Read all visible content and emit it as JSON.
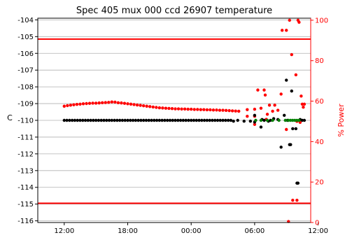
{
  "colors": {
    "temperature": "#000000",
    "power": "#ff0000",
    "limit": "#ff0000",
    "green_series": "#008000",
    "grid": "#b0b0b0",
    "right_axis": "#ff0000"
  },
  "chart_data": {
    "type": "scatter",
    "title": "Spec 405 mux 000 ccd 26907 temperature",
    "ylabel": "C",
    "y2label": "% Power",
    "ylim": [
      -116.1,
      -103.9
    ],
    "y2lim": [
      0,
      101
    ],
    "xlim_hours": [
      9.5,
      35.3
    ],
    "grid": "horizontal",
    "x_ticks": [
      {
        "value": 12,
        "label": "12:00"
      },
      {
        "value": 18,
        "label": "18:00"
      },
      {
        "value": 24,
        "label": "00:00"
      },
      {
        "value": 30,
        "label": "06:00"
      },
      {
        "value": 36,
        "label": "12:00"
      }
    ],
    "y_ticks": [
      "-104",
      "-105",
      "-106",
      "-107",
      "-108",
      "-109",
      "-110",
      "-111",
      "-112",
      "-113",
      "-114",
      "-115",
      "-116"
    ],
    "y2_ticks": [
      "0",
      "20",
      "40",
      "60",
      "80",
      "100"
    ],
    "limit_lines": [
      -105.15,
      -114.95
    ],
    "series": [
      {
        "key": "temperature",
        "axis": "left",
        "points": [
          [
            12.0,
            -110.0
          ],
          [
            12.25,
            -110.0
          ],
          [
            12.5,
            -110.0
          ],
          [
            12.75,
            -110.0
          ],
          [
            13.0,
            -110.0
          ],
          [
            13.25,
            -110.0
          ],
          [
            13.5,
            -110.0
          ],
          [
            13.75,
            -110.0
          ],
          [
            14.0,
            -110.0
          ],
          [
            14.25,
            -110.0
          ],
          [
            14.5,
            -110.0
          ],
          [
            14.75,
            -110.0
          ],
          [
            15.0,
            -110.0
          ],
          [
            15.25,
            -110.0
          ],
          [
            15.5,
            -110.0
          ],
          [
            15.75,
            -110.0
          ],
          [
            16.0,
            -110.0
          ],
          [
            16.25,
            -110.0
          ],
          [
            16.5,
            -110.0
          ],
          [
            16.75,
            -110.0
          ],
          [
            17.0,
            -110.0
          ],
          [
            17.25,
            -110.0
          ],
          [
            17.5,
            -110.0
          ],
          [
            17.75,
            -110.0
          ],
          [
            18.0,
            -110.0
          ],
          [
            18.25,
            -110.0
          ],
          [
            18.5,
            -110.0
          ],
          [
            18.75,
            -110.0
          ],
          [
            19.0,
            -110.0
          ],
          [
            19.25,
            -110.0
          ],
          [
            19.5,
            -110.0
          ],
          [
            19.75,
            -110.0
          ],
          [
            20.0,
            -110.0
          ],
          [
            20.25,
            -110.0
          ],
          [
            20.5,
            -110.0
          ],
          [
            20.75,
            -110.0
          ],
          [
            21.0,
            -110.0
          ],
          [
            21.25,
            -110.0
          ],
          [
            21.5,
            -110.0
          ],
          [
            21.75,
            -110.0
          ],
          [
            22.0,
            -110.0
          ],
          [
            22.25,
            -110.0
          ],
          [
            22.5,
            -110.0
          ],
          [
            22.75,
            -110.0
          ],
          [
            23.0,
            -110.0
          ],
          [
            23.25,
            -110.0
          ],
          [
            23.5,
            -110.0
          ],
          [
            23.75,
            -110.0
          ],
          [
            24.0,
            -110.0
          ],
          [
            24.25,
            -110.0
          ],
          [
            24.5,
            -110.0
          ],
          [
            24.75,
            -110.0
          ],
          [
            25.0,
            -110.0
          ],
          [
            25.25,
            -110.0
          ],
          [
            25.5,
            -110.0
          ],
          [
            25.75,
            -110.0
          ],
          [
            26.0,
            -110.0
          ],
          [
            26.25,
            -110.0
          ],
          [
            26.5,
            -110.0
          ],
          [
            26.75,
            -110.0
          ],
          [
            27.0,
            -110.0
          ],
          [
            27.25,
            -110.0
          ],
          [
            27.5,
            -110.0
          ],
          [
            27.75,
            -110.0
          ],
          [
            28.0,
            -110.05
          ],
          [
            28.4,
            -110.0
          ],
          [
            29.0,
            -110.05
          ],
          [
            29.6,
            -110.05
          ],
          [
            30.0,
            -109.7
          ],
          [
            30.0,
            -110.1
          ],
          [
            30.6,
            -110.4
          ],
          [
            30.7,
            -109.95
          ],
          [
            30.9,
            -110.0
          ],
          [
            31.3,
            -110.05
          ],
          [
            31.5,
            -110.0
          ],
          [
            31.8,
            -109.9
          ],
          [
            32.2,
            -109.95
          ],
          [
            32.5,
            -111.6
          ],
          [
            32.8,
            -109.7
          ],
          [
            33.0,
            -107.6
          ],
          [
            33.1,
            -110.0
          ],
          [
            33.3,
            -111.45
          ],
          [
            33.4,
            -111.45
          ],
          [
            33.5,
            -108.25
          ],
          [
            33.6,
            -110.5
          ],
          [
            33.9,
            -110.5
          ],
          [
            34.0,
            -113.75
          ],
          [
            34.1,
            -113.75
          ],
          [
            34.3,
            -109.95
          ],
          [
            34.5,
            -110.0
          ],
          [
            34.7,
            -110.0
          ]
        ]
      },
      {
        "key": "green",
        "axis": "left",
        "points": [
          [
            30.1,
            -110.0
          ],
          [
            30.6,
            -110.0
          ],
          [
            31.2,
            -110.0
          ],
          [
            31.7,
            -110.0
          ],
          [
            32.3,
            -110.0
          ],
          [
            32.9,
            -110.0
          ],
          [
            33.2,
            -110.0
          ],
          [
            33.4,
            -110.0
          ],
          [
            33.6,
            -110.0
          ],
          [
            33.8,
            -110.0
          ],
          [
            34.0,
            -110.0
          ],
          [
            34.2,
            -110.0
          ]
        ]
      },
      {
        "key": "power",
        "axis": "right",
        "points": [
          [
            12.0,
            57.5
          ],
          [
            12.3,
            57.8
          ],
          [
            12.6,
            58.0
          ],
          [
            12.9,
            58.2
          ],
          [
            13.2,
            58.4
          ],
          [
            13.5,
            58.5
          ],
          [
            13.8,
            58.7
          ],
          [
            14.1,
            58.8
          ],
          [
            14.4,
            58.9
          ],
          [
            14.7,
            59.0
          ],
          [
            15.0,
            59.0
          ],
          [
            15.3,
            59.1
          ],
          [
            15.6,
            59.2
          ],
          [
            15.9,
            59.3
          ],
          [
            16.2,
            59.4
          ],
          [
            16.5,
            59.6
          ],
          [
            16.8,
            59.5
          ],
          [
            17.1,
            59.2
          ],
          [
            17.4,
            59.1
          ],
          [
            17.7,
            58.9
          ],
          [
            18.0,
            58.7
          ],
          [
            18.3,
            58.5
          ],
          [
            18.6,
            58.3
          ],
          [
            18.9,
            58.1
          ],
          [
            19.2,
            57.9
          ],
          [
            19.5,
            57.7
          ],
          [
            19.8,
            57.5
          ],
          [
            20.1,
            57.3
          ],
          [
            20.4,
            57.1
          ],
          [
            20.7,
            56.9
          ],
          [
            21.0,
            56.7
          ],
          [
            21.3,
            56.6
          ],
          [
            21.6,
            56.5
          ],
          [
            21.9,
            56.4
          ],
          [
            22.2,
            56.3
          ],
          [
            22.5,
            56.2
          ],
          [
            22.8,
            56.2
          ],
          [
            23.1,
            56.1
          ],
          [
            23.4,
            56.1
          ],
          [
            23.7,
            56.0
          ],
          [
            24.0,
            56.0
          ],
          [
            24.3,
            55.9
          ],
          [
            24.6,
            55.9
          ],
          [
            24.9,
            55.8
          ],
          [
            25.2,
            55.8
          ],
          [
            25.5,
            55.7
          ],
          [
            25.8,
            55.7
          ],
          [
            26.1,
            55.6
          ],
          [
            26.4,
            55.6
          ],
          [
            26.7,
            55.5
          ],
          [
            27.0,
            55.5
          ],
          [
            27.3,
            55.4
          ],
          [
            27.6,
            55.3
          ],
          [
            27.9,
            55.2
          ],
          [
            28.2,
            55.1
          ],
          [
            28.5,
            55.0
          ],
          [
            29.3,
            55.8
          ],
          [
            29.3,
            52.5
          ],
          [
            30.0,
            56.0
          ],
          [
            30.0,
            52.5
          ],
          [
            30.0,
            48.5
          ],
          [
            30.3,
            65.5
          ],
          [
            30.6,
            56.5
          ],
          [
            30.9,
            65.5
          ],
          [
            31.0,
            63.0
          ],
          [
            31.1,
            51.0
          ],
          [
            31.2,
            53.5
          ],
          [
            31.4,
            58.0
          ],
          [
            31.7,
            55.0
          ],
          [
            31.9,
            58.0
          ],
          [
            32.2,
            55.5
          ],
          [
            32.5,
            63.5
          ],
          [
            32.6,
            95.0
          ],
          [
            33.0,
            95.0
          ],
          [
            33.0,
            46.0
          ],
          [
            33.3,
            100.0
          ],
          [
            33.5,
            83.0
          ],
          [
            33.9,
            73.0
          ],
          [
            34.0,
            50.0
          ],
          [
            34.1,
            100.0
          ],
          [
            34.2,
            99.0
          ],
          [
            34.3,
            49.5
          ],
          [
            34.4,
            62.5
          ],
          [
            34.5,
            58.5
          ],
          [
            34.6,
            57.0
          ],
          [
            34.7,
            58.5
          ],
          [
            33.6,
            11.0
          ],
          [
            34.0,
            11.0
          ],
          [
            33.2,
            0.5
          ]
        ]
      }
    ]
  }
}
